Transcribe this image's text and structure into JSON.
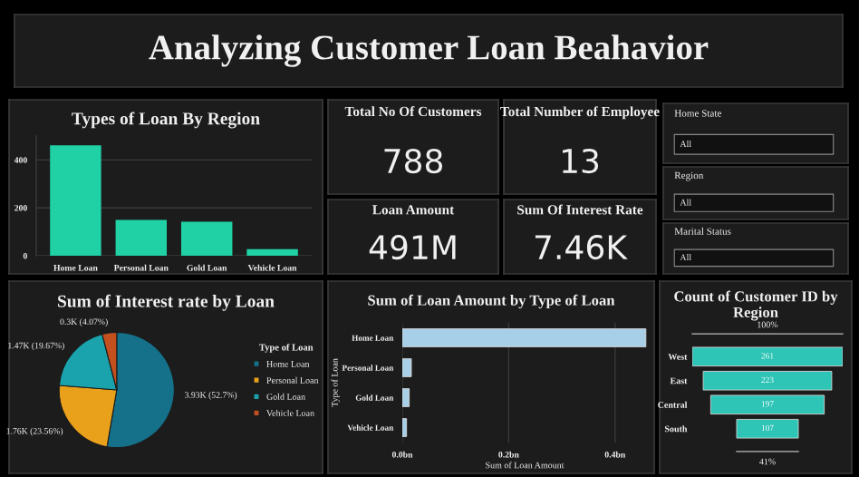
{
  "chart_data": [
    {
      "type": "other",
      "title": "Analyzing Customer Loan Beahavior"
    },
    {
      "type": "bar",
      "title": "Types of Loan By Region",
      "categories": [
        "Home Loan",
        "Personal Loan",
        "Gold Loan",
        "Vehicle Loan"
      ],
      "values": [
        461,
        150,
        142,
        27
      ],
      "color": "#1fd1a5",
      "ylim": [
        0,
        500
      ],
      "yticks": [
        0,
        200,
        400
      ],
      "grid": "y"
    },
    {
      "type": "other",
      "title": "Total No Of Customers",
      "annotations": [
        "788"
      ]
    },
    {
      "type": "other",
      "title": "Total Number of Employee",
      "annotations": [
        "13"
      ]
    },
    {
      "type": "other",
      "title": "Loan Amount",
      "annotations": [
        "491M"
      ]
    },
    {
      "type": "other",
      "title": "Sum Of Interest Rate",
      "annotations": [
        "7.46K"
      ]
    },
    {
      "type": "other",
      "title": "Home State",
      "annotations": [
        "All"
      ]
    },
    {
      "type": "other",
      "title": "Region",
      "annotations": [
        "All"
      ]
    },
    {
      "type": "other",
      "title": "Marital Status",
      "annotations": [
        "All"
      ]
    },
    {
      "type": "pie",
      "title": "Sum of Interest rate by Loan",
      "categories": [
        "Home Loan",
        "Personal Loan",
        "Gold Loan",
        "Vehicle Loan"
      ],
      "values": [
        52.7,
        23.56,
        19.67,
        4.07
      ],
      "value_labels": [
        "3.93K (52.7%)",
        "1.76K (23.56%)",
        "1.47K (19.67%)",
        "0.3K (4.07%)"
      ],
      "colors": [
        "#15708a",
        "#e9a11b",
        "#1aa3ad",
        "#c4501f"
      ],
      "legend_title": "Type of Loan",
      "legend": "right"
    },
    {
      "type": "bar",
      "orientation": "horizontal",
      "title": "Sum of Loan Amount by Type of Loan",
      "categories": [
        "Home Loan",
        "Personal Loan",
        "Gold Loan",
        "Vehicle Loan"
      ],
      "values": [
        0.458,
        0.017,
        0.013,
        0.008
      ],
      "color": "#a8cfe8",
      "xlim": [
        0,
        0.46
      ],
      "xticks": [
        {
          "value": 0,
          "label": "0.0bn"
        },
        {
          "value": 0.2,
          "label": "0.2bn"
        },
        {
          "value": 0.4,
          "label": "0.4bn"
        }
      ],
      "xlabel": "Sum of Loan Amount",
      "ylabel": "Type of Loan",
      "grid": "x"
    },
    {
      "type": "other",
      "title": "Count of Customer ID by Region",
      "categories": [
        "West",
        "East",
        "Central",
        "South"
      ],
      "values": [
        261,
        223,
        197,
        107
      ],
      "color": "#2ec4b6",
      "data_labels": true,
      "annotations": [
        "100%",
        "41%"
      ]
    }
  ]
}
